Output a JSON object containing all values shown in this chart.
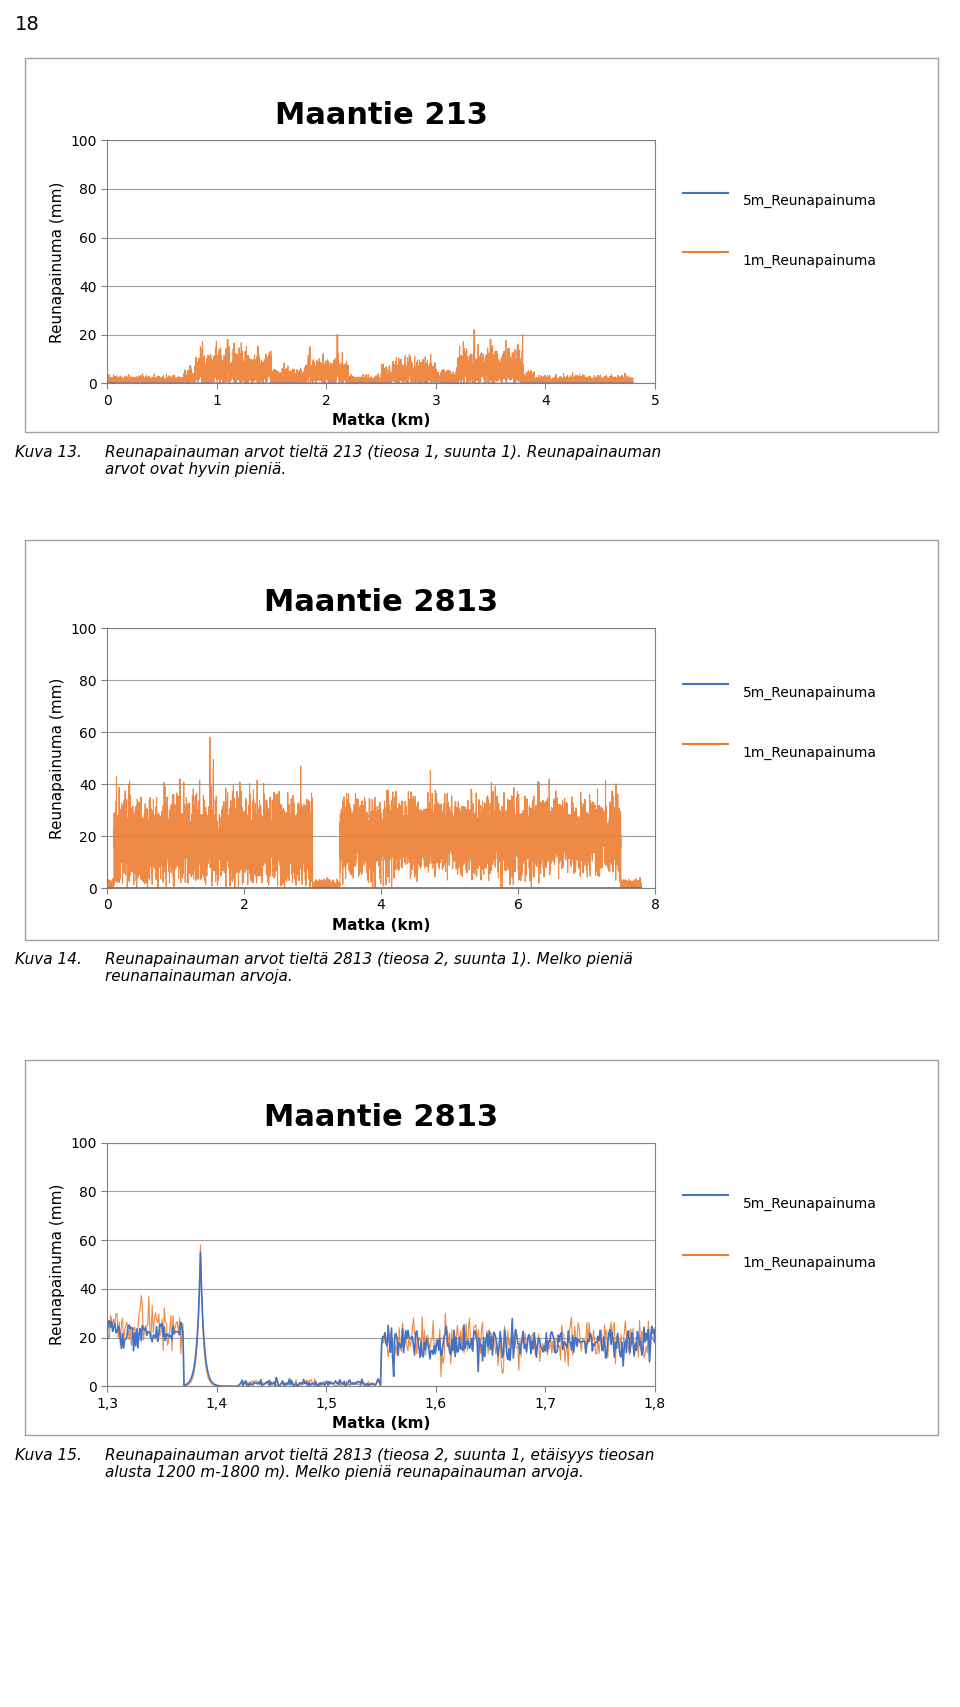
{
  "page_number": "18",
  "chart1": {
    "title": "Maantie 213",
    "xlabel": "Matka (km)",
    "ylabel": "Reunapainuma (mm)",
    "xlim": [
      0,
      5
    ],
    "ylim": [
      0,
      100
    ],
    "xticks": [
      0,
      1,
      2,
      3,
      4,
      5
    ],
    "yticks": [
      0,
      20,
      40,
      60,
      80,
      100
    ],
    "5m_color": "#4472c4",
    "1m_color": "#ed7d31",
    "legend": [
      "5m_Reunapainuma",
      "1m_Reunapainuma"
    ],
    "caption_label": "Kuva 13.",
    "caption_text": "Reunapainauman arvot tieltä 213 (tieosa 1, suunta 1). Reunapainauman\narvot ovat hyvin pieniä."
  },
  "chart2": {
    "title": "Maantie 2813",
    "xlabel": "Matka (km)",
    "ylabel": "Reunapainuma (mm)",
    "xlim": [
      0,
      8
    ],
    "ylim": [
      0,
      100
    ],
    "xticks": [
      0,
      2,
      4,
      6,
      8
    ],
    "yticks": [
      0,
      20,
      40,
      60,
      80,
      100
    ],
    "5m_color": "#4472c4",
    "1m_color": "#ed7d31",
    "legend": [
      "5m_Reunapainuma",
      "1m_Reunapainuma"
    ],
    "caption_label": "Kuva 14.",
    "caption_text": "Reunapainauman arvot tieltä 2813 (tieosa 2, suunta 1). Melko pieniä\nreunапainauman arvoja."
  },
  "chart3": {
    "title": "Maantie 2813",
    "xlabel": "Matka (km)",
    "ylabel": "Reunapainuma (mm)",
    "xlim": [
      1.3,
      1.8
    ],
    "ylim": [
      0,
      100
    ],
    "xticks": [
      1.3,
      1.4,
      1.5,
      1.6,
      1.7,
      1.8
    ],
    "xtick_labels": [
      "1,3",
      "1,4",
      "1,5",
      "1,6",
      "1,7",
      "1,8"
    ],
    "yticks": [
      0,
      20,
      40,
      60,
      80,
      100
    ],
    "5m_color": "#4472c4",
    "1m_color": "#ed7d31",
    "legend": [
      "5m_Reunapainuma",
      "1m_Reunapainuma"
    ],
    "caption_label": "Kuva 15.",
    "caption_text": "Reunapainauman arvot tieltä 2813 (tieosa 2, suunta 1, etäisyys tieosan\nalusta 1200 m-1800 m). Melko pieniä reunapainauman arvoja."
  },
  "background_color": "#ffffff",
  "box_color": "#b0b0b0",
  "grid_color": "#a0a0a0",
  "title_fontsize": 22,
  "axis_label_fontsize": 11,
  "tick_fontsize": 10,
  "legend_fontsize": 10,
  "caption_label_fontsize": 11,
  "caption_text_fontsize": 11
}
